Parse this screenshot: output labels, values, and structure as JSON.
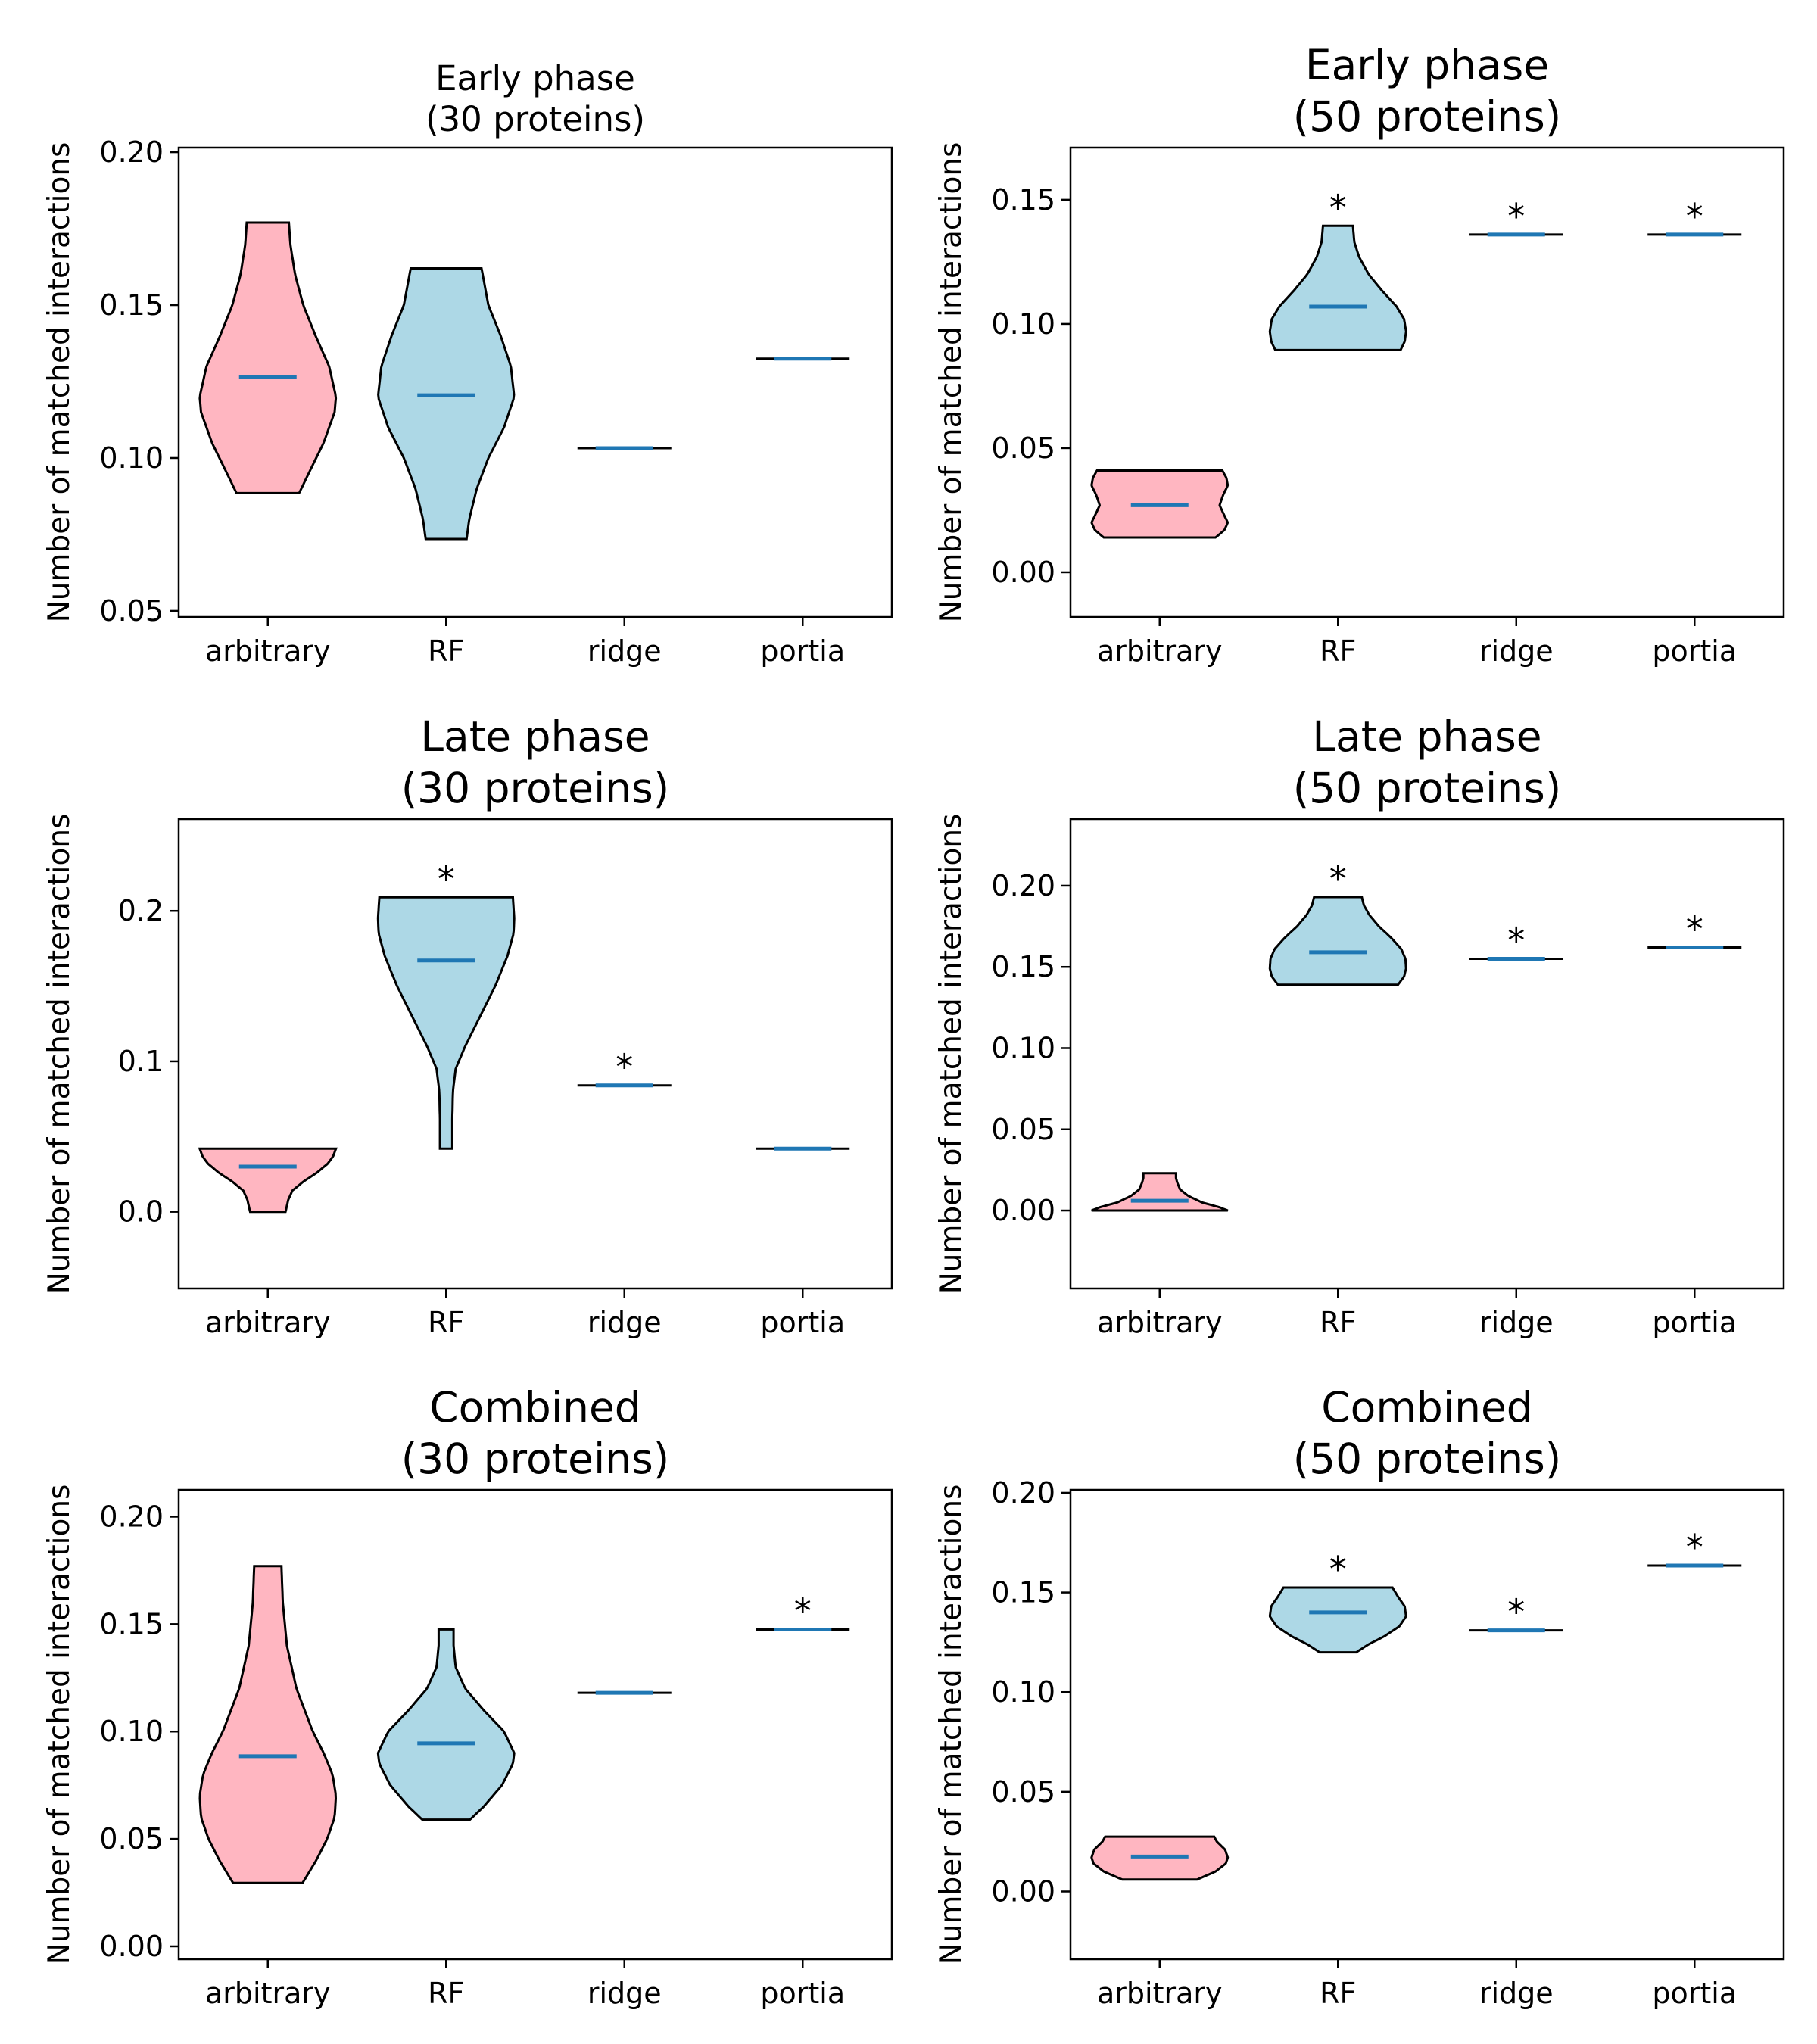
{
  "chart_data": [
    {
      "type": "violin",
      "title_lines": [
        "Early phase",
        "(30 proteins)"
      ],
      "ylabel": "Number of matched interactions",
      "categories": [
        "arbitrary",
        "RF",
        "ridge",
        "portia"
      ],
      "ylim": [
        0.048,
        0.2015
      ],
      "yticks": [
        0.05,
        0.1,
        0.15,
        0.2
      ],
      "ytick_labels": [
        "0.05",
        "0.10",
        "0.15",
        "0.20"
      ],
      "violins": [
        {
          "category": "arbitrary",
          "min": 0.0885,
          "max": 0.177,
          "mean": 0.1265,
          "color": "#ffb6c1",
          "profile": [
            [
              0.0885,
              0.46
            ],
            [
              0.095,
              0.6
            ],
            [
              0.105,
              0.82
            ],
            [
              0.115,
              0.98
            ],
            [
              0.12,
              1.0
            ],
            [
              0.13,
              0.9
            ],
            [
              0.14,
              0.7
            ],
            [
              0.15,
              0.52
            ],
            [
              0.16,
              0.4
            ],
            [
              0.17,
              0.33
            ],
            [
              0.177,
              0.31
            ]
          ]
        },
        {
          "category": "RF",
          "min": 0.0735,
          "max": 0.162,
          "mean": 0.1205,
          "color": "#add8e6",
          "profile": [
            [
              0.0735,
              0.3
            ],
            [
              0.08,
              0.34
            ],
            [
              0.09,
              0.45
            ],
            [
              0.1,
              0.62
            ],
            [
              0.11,
              0.85
            ],
            [
              0.12,
              1.0
            ],
            [
              0.13,
              0.95
            ],
            [
              0.14,
              0.8
            ],
            [
              0.15,
              0.62
            ],
            [
              0.162,
              0.52
            ]
          ]
        },
        {
          "category": "ridge",
          "min": 0.1032,
          "max": 0.1032,
          "mean": 0.1032,
          "color": "#add8e6",
          "profile": []
        },
        {
          "category": "portia",
          "min": 0.1325,
          "max": 0.1325,
          "mean": 0.1325,
          "color": "#add8e6",
          "profile": []
        }
      ],
      "significant": []
    },
    {
      "type": "violin",
      "title_lines": [
        "Early phase",
        "(50 proteins)"
      ],
      "ylabel": "Number of matched interactions",
      "categories": [
        "arbitrary",
        "RF",
        "ridge",
        "portia"
      ],
      "ylim": [
        -0.018,
        0.171
      ],
      "yticks": [
        0.0,
        0.05,
        0.1,
        0.15
      ],
      "ytick_labels": [
        "0.00",
        "0.05",
        "0.10",
        "0.15"
      ],
      "violins": [
        {
          "category": "arbitrary",
          "min": 0.014,
          "max": 0.041,
          "mean": 0.027,
          "color": "#ffb6c1",
          "profile": [
            [
              0.014,
              0.82
            ],
            [
              0.017,
              0.95
            ],
            [
              0.02,
              1.0
            ],
            [
              0.024,
              0.93
            ],
            [
              0.027,
              0.88
            ],
            [
              0.031,
              0.93
            ],
            [
              0.035,
              1.0
            ],
            [
              0.038,
              0.98
            ],
            [
              0.041,
              0.92
            ]
          ]
        },
        {
          "category": "RF",
          "min": 0.0895,
          "max": 0.1395,
          "mean": 0.107,
          "color": "#add8e6",
          "profile": [
            [
              0.0895,
              0.92
            ],
            [
              0.093,
              0.98
            ],
            [
              0.097,
              1.0
            ],
            [
              0.102,
              0.97
            ],
            [
              0.107,
              0.86
            ],
            [
              0.113,
              0.66
            ],
            [
              0.12,
              0.45
            ],
            [
              0.127,
              0.31
            ],
            [
              0.133,
              0.24
            ],
            [
              0.1395,
              0.22
            ]
          ]
        },
        {
          "category": "ridge",
          "min": 0.136,
          "max": 0.136,
          "mean": 0.136,
          "color": "#add8e6",
          "profile": []
        },
        {
          "category": "portia",
          "min": 0.136,
          "max": 0.136,
          "mean": 0.136,
          "color": "#add8e6",
          "profile": []
        }
      ],
      "significant": [
        "RF",
        "ridge",
        "portia"
      ]
    },
    {
      "type": "violin",
      "title_lines": [
        "Late phase",
        "(30 proteins)"
      ],
      "ylabel": "Number of matched interactions",
      "categories": [
        "arbitrary",
        "RF",
        "ridge",
        "portia"
      ],
      "ylim": [
        -0.051,
        0.261
      ],
      "yticks": [
        0.0,
        0.1,
        0.2
      ],
      "ytick_labels": [
        "0.0",
        "0.1",
        "0.2"
      ],
      "violins": [
        {
          "category": "arbitrary",
          "min": 0.0,
          "max": 0.042,
          "mean": 0.03,
          "color": "#ffb6c1",
          "profile": [
            [
              0.0,
              0.26
            ],
            [
              0.004,
              0.28
            ],
            [
              0.008,
              0.3
            ],
            [
              0.014,
              0.36
            ],
            [
              0.02,
              0.52
            ],
            [
              0.026,
              0.72
            ],
            [
              0.032,
              0.88
            ],
            [
              0.037,
              0.96
            ],
            [
              0.042,
              1.0
            ]
          ]
        },
        {
          "category": "RF",
          "min": 0.042,
          "max": 0.209,
          "mean": 0.167,
          "color": "#add8e6",
          "profile": [
            [
              0.042,
              0.09
            ],
            [
              0.06,
              0.09
            ],
            [
              0.08,
              0.1
            ],
            [
              0.095,
              0.14
            ],
            [
              0.11,
              0.28
            ],
            [
              0.13,
              0.5
            ],
            [
              0.15,
              0.72
            ],
            [
              0.17,
              0.9
            ],
            [
              0.185,
              0.99
            ],
            [
              0.195,
              1.0
            ],
            [
              0.209,
              0.98
            ]
          ]
        },
        {
          "category": "ridge",
          "min": 0.084,
          "max": 0.084,
          "mean": 0.084,
          "color": "#add8e6",
          "profile": []
        },
        {
          "category": "portia",
          "min": 0.042,
          "max": 0.042,
          "mean": 0.042,
          "color": "#add8e6",
          "profile": []
        }
      ],
      "significant": [
        "RF",
        "ridge"
      ]
    },
    {
      "type": "violin",
      "title_lines": [
        "Late phase",
        "(50 proteins)"
      ],
      "ylabel": "Number of matched interactions",
      "categories": [
        "arbitrary",
        "RF",
        "ridge",
        "portia"
      ],
      "ylim": [
        -0.048,
        0.241
      ],
      "yticks": [
        0.0,
        0.05,
        0.1,
        0.15,
        0.2
      ],
      "ytick_labels": [
        "0.00",
        "0.05",
        "0.10",
        "0.15",
        "0.20"
      ],
      "violins": [
        {
          "category": "arbitrary",
          "min": 0.0,
          "max": 0.023,
          "mean": 0.006,
          "color": "#ffb6c1",
          "profile": [
            [
              0.0,
              1.0
            ],
            [
              0.002,
              0.88
            ],
            [
              0.005,
              0.62
            ],
            [
              0.009,
              0.42
            ],
            [
              0.013,
              0.3
            ],
            [
              0.017,
              0.26
            ],
            [
              0.02,
              0.24
            ],
            [
              0.023,
              0.24
            ]
          ]
        },
        {
          "category": "RF",
          "min": 0.139,
          "max": 0.193,
          "mean": 0.159,
          "color": "#add8e6",
          "profile": [
            [
              0.139,
              0.88
            ],
            [
              0.144,
              0.97
            ],
            [
              0.149,
              1.0
            ],
            [
              0.155,
              0.99
            ],
            [
              0.161,
              0.93
            ],
            [
              0.168,
              0.78
            ],
            [
              0.175,
              0.6
            ],
            [
              0.182,
              0.46
            ],
            [
              0.188,
              0.38
            ],
            [
              0.193,
              0.35
            ]
          ]
        },
        {
          "category": "ridge",
          "min": 0.155,
          "max": 0.155,
          "mean": 0.155,
          "color": "#add8e6",
          "profile": []
        },
        {
          "category": "portia",
          "min": 0.162,
          "max": 0.162,
          "mean": 0.162,
          "color": "#add8e6",
          "profile": []
        }
      ],
      "significant": [
        "RF",
        "ridge",
        "portia"
      ]
    },
    {
      "type": "violin",
      "title_lines": [
        "Combined",
        "(30 proteins)"
      ],
      "ylabel": "Number of matched interactions",
      "categories": [
        "arbitrary",
        "RF",
        "ridge",
        "portia"
      ],
      "ylim": [
        -0.006,
        0.2125
      ],
      "yticks": [
        0.0,
        0.05,
        0.1,
        0.15,
        0.2
      ],
      "ytick_labels": [
        "0.00",
        "0.05",
        "0.10",
        "0.15",
        "0.20"
      ],
      "violins": [
        {
          "category": "arbitrary",
          "min": 0.0295,
          "max": 0.177,
          "mean": 0.0885,
          "color": "#ffb6c1",
          "profile": [
            [
              0.0295,
              0.51
            ],
            [
              0.04,
              0.71
            ],
            [
              0.05,
              0.87
            ],
            [
              0.06,
              0.98
            ],
            [
              0.07,
              1.0
            ],
            [
              0.08,
              0.95
            ],
            [
              0.09,
              0.82
            ],
            [
              0.1,
              0.66
            ],
            [
              0.12,
              0.42
            ],
            [
              0.14,
              0.28
            ],
            [
              0.16,
              0.22
            ],
            [
              0.177,
              0.2
            ]
          ]
        },
        {
          "category": "RF",
          "min": 0.059,
          "max": 0.1475,
          "mean": 0.0945,
          "color": "#add8e6",
          "profile": [
            [
              0.059,
              0.35
            ],
            [
              0.065,
              0.55
            ],
            [
              0.075,
              0.82
            ],
            [
              0.085,
              0.98
            ],
            [
              0.09,
              1.0
            ],
            [
              0.1,
              0.85
            ],
            [
              0.11,
              0.55
            ],
            [
              0.12,
              0.28
            ],
            [
              0.13,
              0.14
            ],
            [
              0.14,
              0.11
            ],
            [
              0.1475,
              0.11
            ]
          ]
        },
        {
          "category": "ridge",
          "min": 0.118,
          "max": 0.118,
          "mean": 0.118,
          "color": "#add8e6",
          "profile": []
        },
        {
          "category": "portia",
          "min": 0.1475,
          "max": 0.1475,
          "mean": 0.1475,
          "color": "#add8e6",
          "profile": []
        }
      ],
      "significant": [
        "portia"
      ]
    },
    {
      "type": "violin",
      "title_lines": [
        "Combined",
        "(50 proteins)"
      ],
      "ylabel": "Number of matched interactions",
      "categories": [
        "arbitrary",
        "RF",
        "ridge",
        "portia"
      ],
      "ylim": [
        -0.034,
        0.2015
      ],
      "yticks": [
        0.0,
        0.05,
        0.1,
        0.15,
        0.2
      ],
      "ytick_labels": [
        "0.00",
        "0.05",
        "0.10",
        "0.15",
        "0.20"
      ],
      "violins": [
        {
          "category": "arbitrary",
          "min": 0.006,
          "max": 0.0275,
          "mean": 0.0175,
          "color": "#ffb6c1",
          "profile": [
            [
              0.006,
              0.55
            ],
            [
              0.01,
              0.82
            ],
            [
              0.014,
              0.97
            ],
            [
              0.017,
              1.0
            ],
            [
              0.021,
              0.96
            ],
            [
              0.025,
              0.84
            ],
            [
              0.0275,
              0.8
            ]
          ]
        },
        {
          "category": "RF",
          "min": 0.12,
          "max": 0.1525,
          "mean": 0.14,
          "color": "#add8e6",
          "profile": [
            [
              0.12,
              0.27
            ],
            [
              0.124,
              0.45
            ],
            [
              0.128,
              0.68
            ],
            [
              0.133,
              0.9
            ],
            [
              0.138,
              1.0
            ],
            [
              0.143,
              0.98
            ],
            [
              0.148,
              0.88
            ],
            [
              0.1525,
              0.8
            ]
          ]
        },
        {
          "category": "ridge",
          "min": 0.131,
          "max": 0.131,
          "mean": 0.131,
          "color": "#add8e6",
          "profile": []
        },
        {
          "category": "portia",
          "min": 0.1635,
          "max": 0.1635,
          "mean": 0.1635,
          "color": "#add8e6",
          "profile": []
        }
      ],
      "significant": [
        "RF",
        "ridge",
        "portia"
      ]
    }
  ],
  "star_symbol": "*",
  "colors": {
    "mean_line": "#1f77b4",
    "edge": "#000000",
    "arbitrary_fill": "#ffb6c1",
    "method_fill": "#add8e6"
  }
}
